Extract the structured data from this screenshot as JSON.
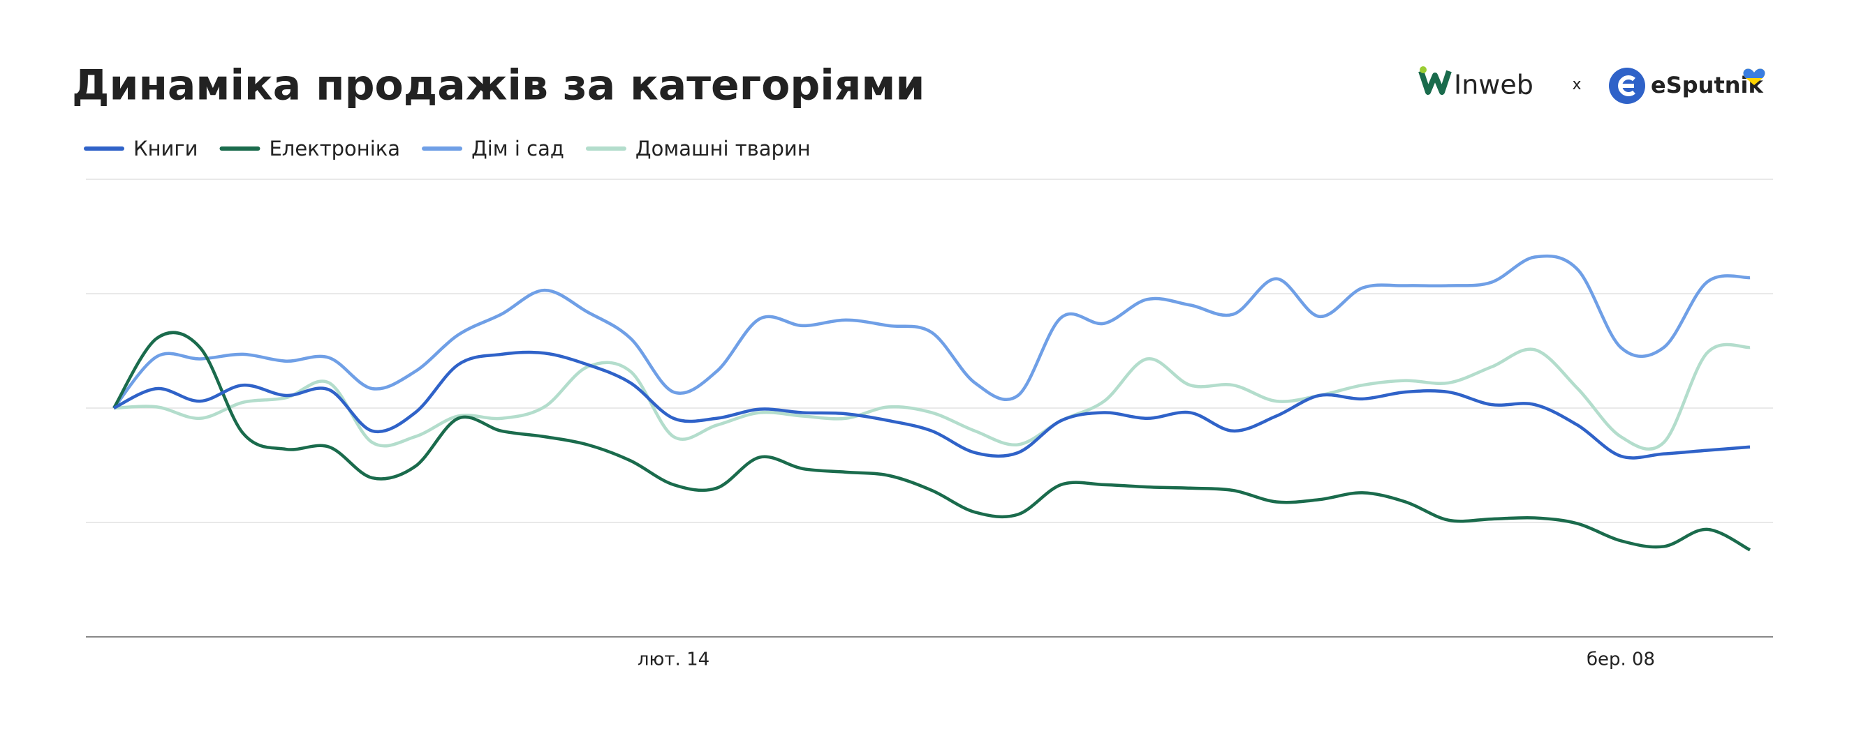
{
  "brands": [
    "Inweb",
    "x",
    "eSputnik"
  ],
  "chart_data": {
    "type": "line",
    "title": "Динаміка продажів за категоріями",
    "categories": [
      null,
      null,
      null,
      null,
      null,
      null,
      null,
      null,
      null,
      null,
      null,
      null,
      null,
      "лют. 14",
      null,
      null,
      null,
      null,
      null,
      null,
      null,
      null,
      null,
      null,
      null,
      null,
      null,
      null,
      null,
      null,
      null,
      null,
      null,
      null,
      null,
      "бер. 08",
      null,
      null,
      null
    ],
    "ylim": [
      0,
      4
    ],
    "yticks": [
      0,
      1,
      2,
      3,
      4
    ],
    "grid": true,
    "legend": "top-left",
    "series": [
      {
        "name": "Книги",
        "color": "#2f62c8",
        "values": [
          2.0,
          2.17,
          2.06,
          2.2,
          2.11,
          2.16,
          1.8,
          1.96,
          2.38,
          2.47,
          2.48,
          2.38,
          2.22,
          1.91,
          1.91,
          1.99,
          1.96,
          1.95,
          1.89,
          1.8,
          1.61,
          1.61,
          1.89,
          1.96,
          1.91,
          1.96,
          1.8,
          1.93,
          2.11,
          2.08,
          2.14,
          2.14,
          2.03,
          2.03,
          1.85,
          1.58,
          1.6,
          1.63,
          1.66
        ]
      },
      {
        "name": "Електроніка",
        "color": "#1a6b4c",
        "values": [
          2.0,
          2.61,
          2.53,
          1.78,
          1.64,
          1.66,
          1.39,
          1.49,
          1.91,
          1.8,
          1.75,
          1.68,
          1.54,
          1.33,
          1.3,
          1.57,
          1.47,
          1.44,
          1.41,
          1.28,
          1.09,
          1.07,
          1.33,
          1.33,
          1.31,
          1.3,
          1.28,
          1.18,
          1.2,
          1.26,
          1.18,
          1.02,
          1.03,
          1.04,
          0.99,
          0.84,
          0.79,
          0.94,
          0.76
        ]
      },
      {
        "name": "Дім і сад",
        "color": "#6f9fe6",
        "values": [
          2.0,
          2.45,
          2.43,
          2.47,
          2.41,
          2.44,
          2.17,
          2.32,
          2.64,
          2.82,
          3.03,
          2.84,
          2.61,
          2.14,
          2.32,
          2.78,
          2.72,
          2.77,
          2.72,
          2.66,
          2.22,
          2.11,
          2.79,
          2.74,
          2.95,
          2.9,
          2.82,
          3.13,
          2.8,
          3.05,
          3.07,
          3.07,
          3.1,
          3.32,
          3.21,
          2.53,
          2.53,
          3.1,
          3.14
        ]
      },
      {
        "name": "Домашні тварин",
        "color": "#b3ddcc",
        "values": [
          2.0,
          2.01,
          1.91,
          2.05,
          2.09,
          2.22,
          1.7,
          1.75,
          1.93,
          1.91,
          2.01,
          2.36,
          2.32,
          1.75,
          1.85,
          1.96,
          1.93,
          1.91,
          2.01,
          1.96,
          1.8,
          1.68,
          1.89,
          2.06,
          2.43,
          2.2,
          2.2,
          2.06,
          2.11,
          2.2,
          2.24,
          2.22,
          2.36,
          2.51,
          2.17,
          1.75,
          1.7,
          2.48,
          2.53
        ]
      }
    ]
  }
}
